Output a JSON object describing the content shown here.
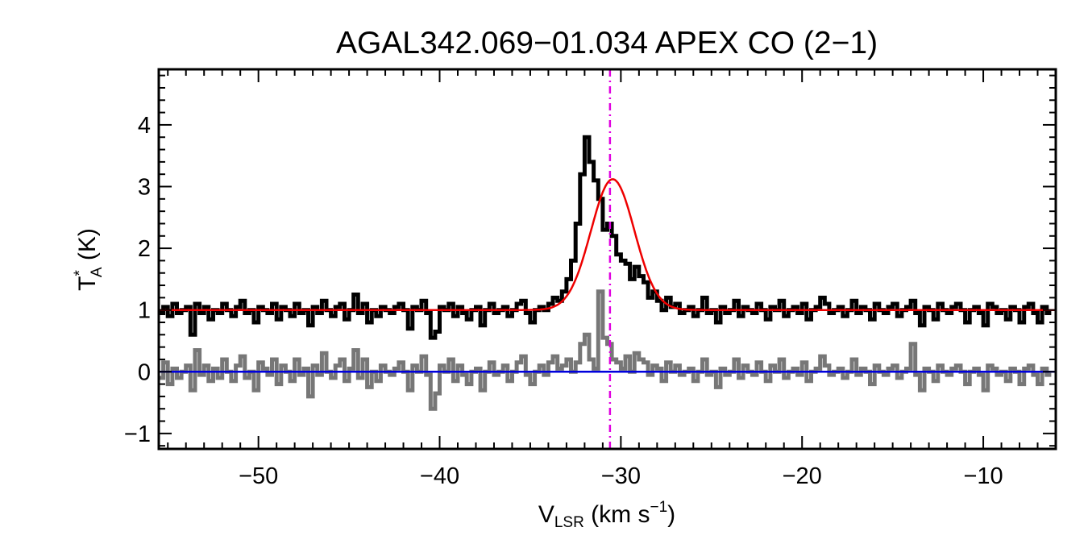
{
  "chart_data": {
    "type": "line",
    "title": "AGAL342.069−01.034  APEX CO (2−1)",
    "xlabel": {
      "main": "V",
      "sub": "LSR",
      "units_pre": " (km s",
      "sup": "−1",
      "units_post": ")"
    },
    "ylabel": {
      "main": "T",
      "sup": "*",
      "sub": "A",
      "units": " (K)"
    },
    "xlim": [
      -55.5,
      -6
    ],
    "ylim": [
      -1.25,
      4.9
    ],
    "xticks": [
      -50,
      -40,
      -30,
      -20,
      -10
    ],
    "xtick_labels": [
      "−50",
      "−40",
      "−30",
      "−20",
      "−10"
    ],
    "yticks": [
      -1,
      0,
      1,
      2,
      3,
      4
    ],
    "ytick_labels": [
      "−1",
      "0",
      "1",
      "2",
      "3",
      "4"
    ],
    "vline": {
      "x": -30.6,
      "color": "#e000e0",
      "style": "dash-dot"
    },
    "series": [
      {
        "name": "observed spectrum",
        "style": "step",
        "color": "#000000",
        "x_start": -55.5,
        "x_step": 0.25,
        "values": [
          0.95,
          1.05,
          0.9,
          1.1,
          0.95,
          1.0,
          1.05,
          0.6,
          1.1,
          0.95,
          1.05,
          0.85,
          1.0,
          0.95,
          1.1,
          1.0,
          0.9,
          1.05,
          1.15,
          0.95,
          1.0,
          0.8,
          1.05,
          1.0,
          0.95,
          1.1,
          0.85,
          1.05,
          1.0,
          0.9,
          1.1,
          0.95,
          1.0,
          0.75,
          1.05,
          0.95,
          1.15,
          1.0,
          0.9,
          1.05,
          1.1,
          0.85,
          1.0,
          1.25,
          0.95,
          1.1,
          0.8,
          1.0,
          0.9,
          1.05,
          1.0,
          0.95,
          1.05,
          1.1,
          1.0,
          0.7,
          1.05,
          1.0,
          1.15,
          0.95,
          0.55,
          0.65,
          1.05,
          1.0,
          1.1,
          0.9,
          1.05,
          0.95,
          0.85,
          1.0,
          1.05,
          0.75,
          1.0,
          1.1,
          0.95,
          1.0,
          1.05,
          0.9,
          1.0,
          1.1,
          1.15,
          0.95,
          0.8,
          1.0,
          1.05,
          1.0,
          1.1,
          1.2,
          1.15,
          1.3,
          1.5,
          1.8,
          2.4,
          3.2,
          3.8,
          3.4,
          3.1,
          2.8,
          2.3,
          2.4,
          2.2,
          1.9,
          1.8,
          1.75,
          1.5,
          1.7,
          1.55,
          1.45,
          1.2,
          1.3,
          1.15,
          1.0,
          1.2,
          1.05,
          1.1,
          0.95,
          1.0,
          1.05,
          0.9,
          1.0,
          1.2,
          0.95,
          1.0,
          0.8,
          1.05,
          0.95,
          1.0,
          1.15,
          0.9,
          1.05,
          1.0,
          0.95,
          1.1,
          1.0,
          0.85,
          1.05,
          1.0,
          1.15,
          0.9,
          1.0,
          1.05,
          0.95,
          1.1,
          0.85,
          1.0,
          1.05,
          1.2,
          1.1,
          0.95,
          1.0,
          1.05,
          0.9,
          1.0,
          1.15,
          0.95,
          1.05,
          1.0,
          0.85,
          1.1,
          1.0,
          0.95,
          1.05,
          1.1,
          0.9,
          1.0,
          1.05,
          1.15,
          0.95,
          0.75,
          1.05,
          1.0,
          0.85,
          1.1,
          1.0,
          0.95,
          1.05,
          1.1,
          1.0,
          0.8,
          1.0,
          1.05,
          0.95,
          0.75,
          1.1,
          1.05,
          0.95,
          1.0,
          0.85,
          1.05,
          1.0,
          0.8,
          1.05,
          1.1,
          0.95,
          0.8,
          1.05,
          0.95
        ]
      },
      {
        "name": "residual",
        "style": "step",
        "color": "#777777",
        "x_start": -55.5,
        "x_step": 0.25,
        "values": [
          -0.1,
          0.15,
          -0.2,
          0.05,
          -0.1,
          0.0,
          0.1,
          -0.3,
          0.35,
          -0.05,
          0.1,
          -0.15,
          0.05,
          -0.1,
          0.2,
          0.0,
          -0.15,
          0.1,
          0.25,
          -0.1,
          0.0,
          -0.3,
          0.15,
          0.05,
          -0.05,
          0.2,
          -0.2,
          0.1,
          0.0,
          -0.15,
          0.2,
          -0.05,
          0.05,
          -0.4,
          0.1,
          -0.05,
          0.3,
          0.0,
          -0.1,
          0.1,
          0.2,
          -0.15,
          0.05,
          0.35,
          -0.1,
          0.2,
          -0.25,
          0.0,
          -0.15,
          0.1,
          0.0,
          -0.05,
          0.05,
          0.15,
          0.0,
          -0.3,
          0.1,
          0.0,
          0.25,
          -0.05,
          -0.6,
          -0.35,
          0.1,
          0.0,
          0.2,
          -0.15,
          0.1,
          -0.05,
          -0.2,
          0.0,
          0.05,
          -0.3,
          0.0,
          0.15,
          -0.05,
          0.0,
          0.1,
          -0.15,
          0.0,
          0.15,
          0.25,
          -0.05,
          -0.2,
          0.0,
          0.1,
          -0.05,
          0.15,
          0.25,
          0.05,
          0.1,
          0.2,
          0.0,
          0.15,
          0.45,
          0.6,
          0.2,
          0.05,
          1.3,
          0.55,
          0.45,
          0.2,
          0.15,
          0.05,
          0.25,
          0.0,
          0.3,
          0.2,
          0.15,
          -0.05,
          0.1,
          0.05,
          -0.15,
          0.15,
          0.0,
          0.1,
          -0.05,
          0.0,
          0.05,
          -0.15,
          0.0,
          0.2,
          -0.05,
          0.0,
          -0.25,
          0.05,
          -0.05,
          0.0,
          0.2,
          -0.1,
          0.1,
          0.0,
          -0.05,
          0.15,
          0.0,
          -0.15,
          0.1,
          0.0,
          0.2,
          -0.1,
          0.0,
          0.05,
          -0.05,
          0.15,
          -0.15,
          0.0,
          0.05,
          0.25,
          0.1,
          -0.05,
          0.0,
          0.05,
          -0.1,
          0.0,
          0.2,
          -0.05,
          0.05,
          0.0,
          -0.2,
          0.1,
          0.0,
          -0.05,
          0.05,
          0.1,
          -0.1,
          0.0,
          0.05,
          0.45,
          -0.05,
          -0.3,
          0.05,
          0.0,
          -0.15,
          0.1,
          0.0,
          -0.05,
          0.05,
          0.1,
          0.0,
          -0.2,
          0.0,
          0.05,
          -0.05,
          -0.3,
          0.1,
          0.05,
          -0.05,
          0.0,
          -0.15,
          0.05,
          0.0,
          -0.2,
          0.05,
          0.1,
          -0.05,
          -0.2,
          0.05,
          -0.05
        ]
      },
      {
        "name": "gaussian fit",
        "style": "line",
        "color": "#ee0000",
        "baseline": 1.0,
        "amplitude": 2.12,
        "center": -30.45,
        "sigma": 1.2
      },
      {
        "name": "zero baseline",
        "style": "hline",
        "color": "#0000dd",
        "y": 0
      }
    ]
  }
}
